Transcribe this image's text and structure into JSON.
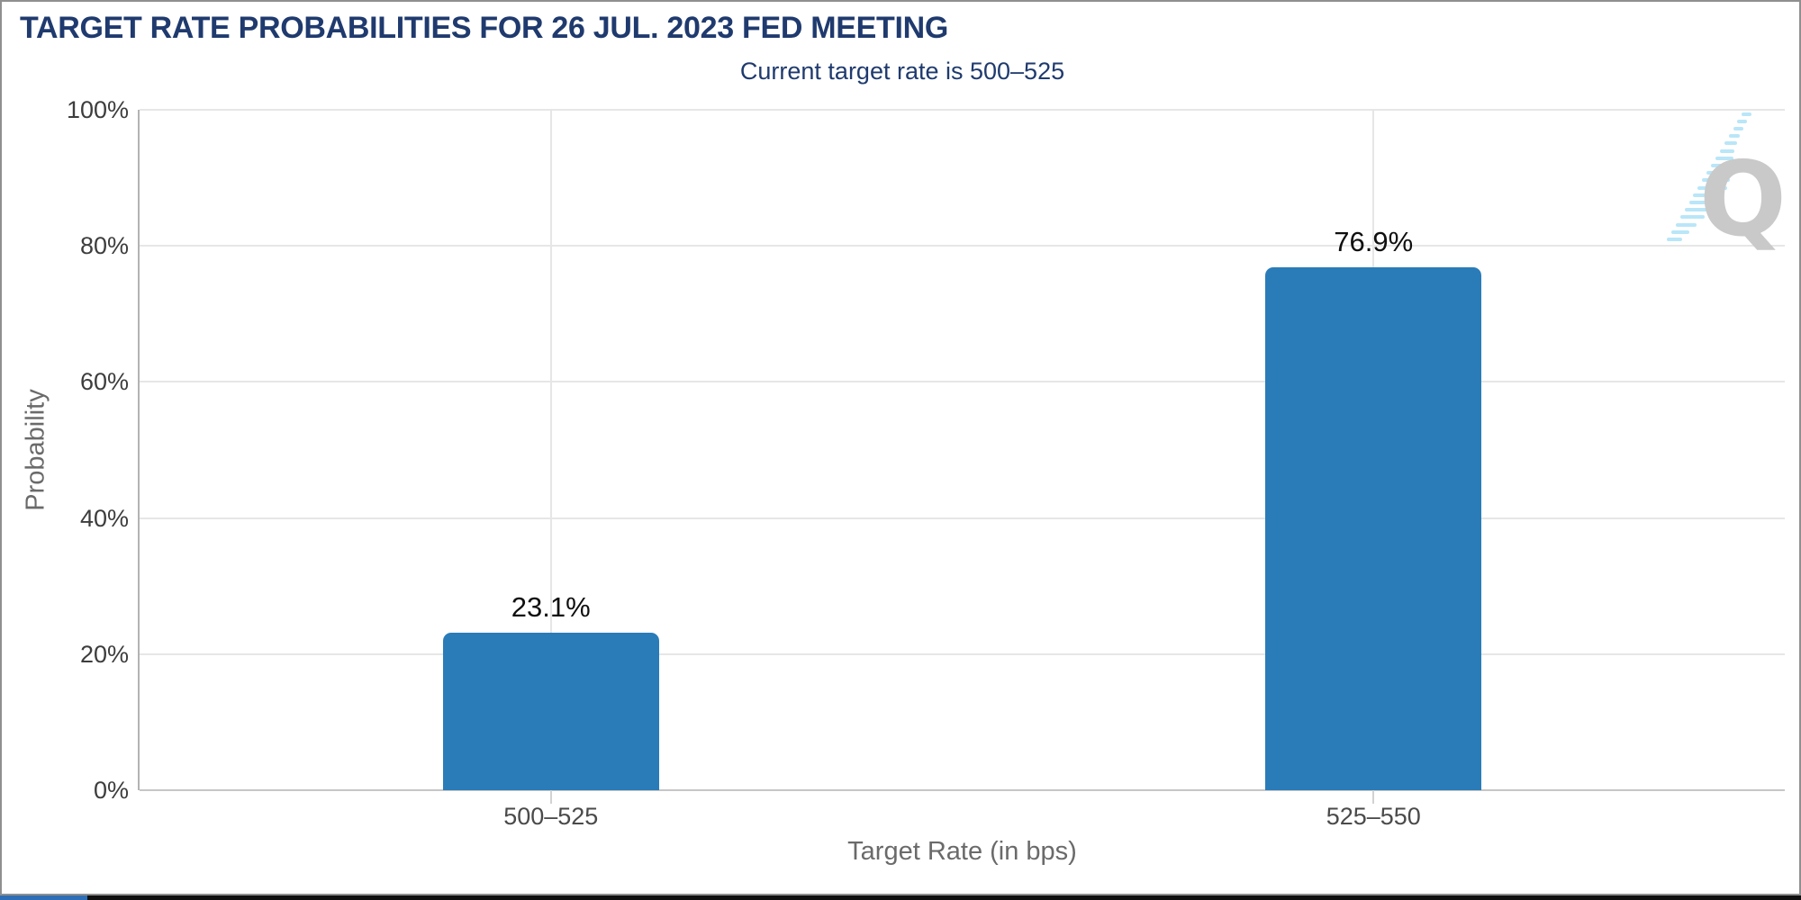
{
  "chart_data": {
    "type": "bar",
    "title": "TARGET RATE PROBABILITIES FOR 26 JUL. 2023 FED MEETING",
    "subtitle": "Current target rate is 500–525",
    "categories": [
      "500–525",
      "525–550"
    ],
    "values": [
      23.1,
      76.9
    ],
    "value_labels": [
      "23.1%",
      "76.9%"
    ],
    "xlabel": "Target Rate (in bps)",
    "ylabel": "Probability",
    "ylim": [
      0,
      100
    ],
    "yticks": [
      0,
      20,
      40,
      60,
      80,
      100
    ],
    "ytick_labels": [
      "0%",
      "20%",
      "40%",
      "60%",
      "80%",
      "100%"
    ],
    "grid": true,
    "legend": false,
    "bar_color": "#2a7cb8"
  },
  "watermark": {
    "letter": "Q"
  },
  "colors": {
    "title_navy": "#1f3a6e",
    "bar_blue": "#2a7cb8",
    "grid_gray": "#e6e6e6",
    "axis_gray": "#b3b3b3",
    "tick_label_gray": "#3d3d3d",
    "axis_title_gray": "#6a6a6a",
    "watermark_gray": "#c9c9c9",
    "watermark_blue": "#b9e6f8",
    "progress_blue": "#2e6eb7"
  }
}
